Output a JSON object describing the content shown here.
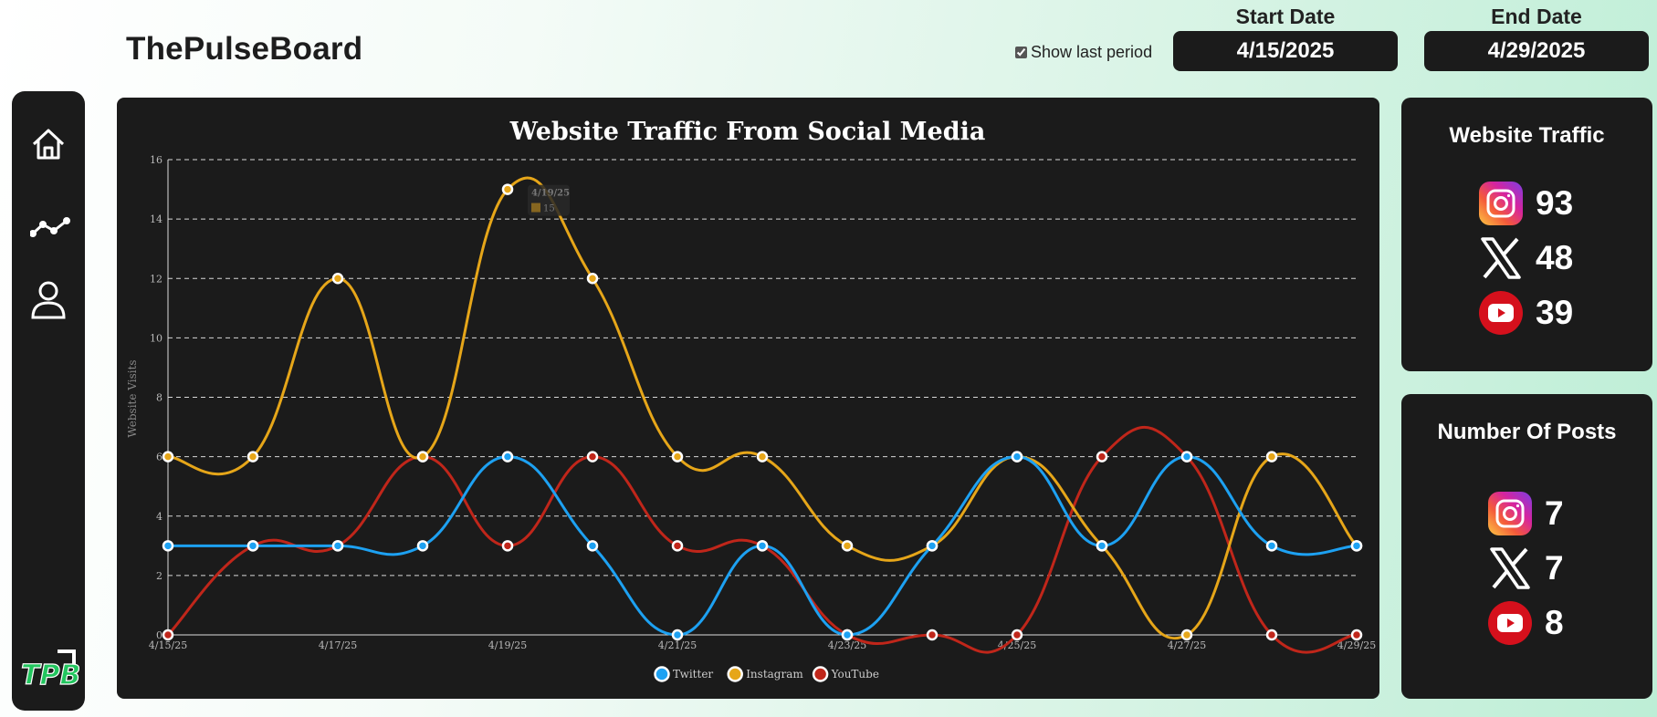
{
  "header": {
    "app_title": "ThePulseBoard",
    "show_last_period_label": "Show last period",
    "show_last_period_checked": true,
    "start_date_label": "Start Date",
    "start_date_value": "4/15/2025",
    "end_date_label": "End Date",
    "end_date_value": "4/29/2025"
  },
  "sidebar": {
    "items": [
      {
        "icon": "home-icon"
      },
      {
        "icon": "trend-line-icon"
      },
      {
        "icon": "user-icon"
      }
    ],
    "logo_text": "TPB"
  },
  "chart_data": {
    "type": "line",
    "title": "Website Traffic From Social Media",
    "ylabel": "Website Visits",
    "xlabel": "",
    "x": [
      "4/15/25",
      "4/16/25",
      "4/17/25",
      "4/18/25",
      "4/19/25",
      "4/20/25",
      "4/21/25",
      "4/22/25",
      "4/23/25",
      "4/24/25",
      "4/25/25",
      "4/26/25",
      "4/27/25",
      "4/28/25",
      "4/29/25"
    ],
    "x_tick_labels": [
      "4/15/25",
      "4/17/25",
      "4/19/25",
      "4/21/25",
      "4/23/25",
      "4/25/25",
      "4/27/25",
      "4/29/25"
    ],
    "ylim": [
      0,
      16
    ],
    "y_ticks": [
      0,
      2,
      4,
      6,
      8,
      10,
      12,
      14,
      16
    ],
    "grid": true,
    "legend_position": "bottom-center",
    "series": [
      {
        "name": "Twitter",
        "color": "#1da1f2",
        "values": [
          3,
          3,
          3,
          3,
          6,
          3,
          0,
          3,
          0,
          3,
          6,
          3,
          6,
          3,
          3
        ]
      },
      {
        "name": "Instagram",
        "color": "#e6a619",
        "values": [
          6,
          6,
          12,
          6,
          15,
          12,
          6,
          6,
          3,
          3,
          6,
          3,
          0,
          6,
          3
        ]
      },
      {
        "name": "YouTube",
        "color": "#c0261a",
        "values": [
          0,
          3,
          3,
          6,
          3,
          6,
          3,
          3,
          0,
          0,
          0,
          6,
          6,
          0,
          0
        ]
      }
    ],
    "tooltip": {
      "x": "4/19/25",
      "series": "Instagram",
      "value": 15
    }
  },
  "traffic_card": {
    "title": "Website Traffic",
    "items": [
      {
        "icon": "instagram-icon",
        "value": "93"
      },
      {
        "icon": "x-twitter-icon",
        "value": "48"
      },
      {
        "icon": "youtube-icon",
        "value": "39"
      }
    ]
  },
  "posts_card": {
    "title": "Number Of Posts",
    "items": [
      {
        "icon": "instagram-icon",
        "value": "7"
      },
      {
        "icon": "x-twitter-icon",
        "value": "7"
      },
      {
        "icon": "youtube-icon",
        "value": "8"
      }
    ]
  },
  "colors": {
    "panel_bg": "#1b1b1b",
    "twitter": "#1da1f2",
    "instagram": "#e6a619",
    "youtube": "#c0261a",
    "logo_green": "#22c55e"
  }
}
